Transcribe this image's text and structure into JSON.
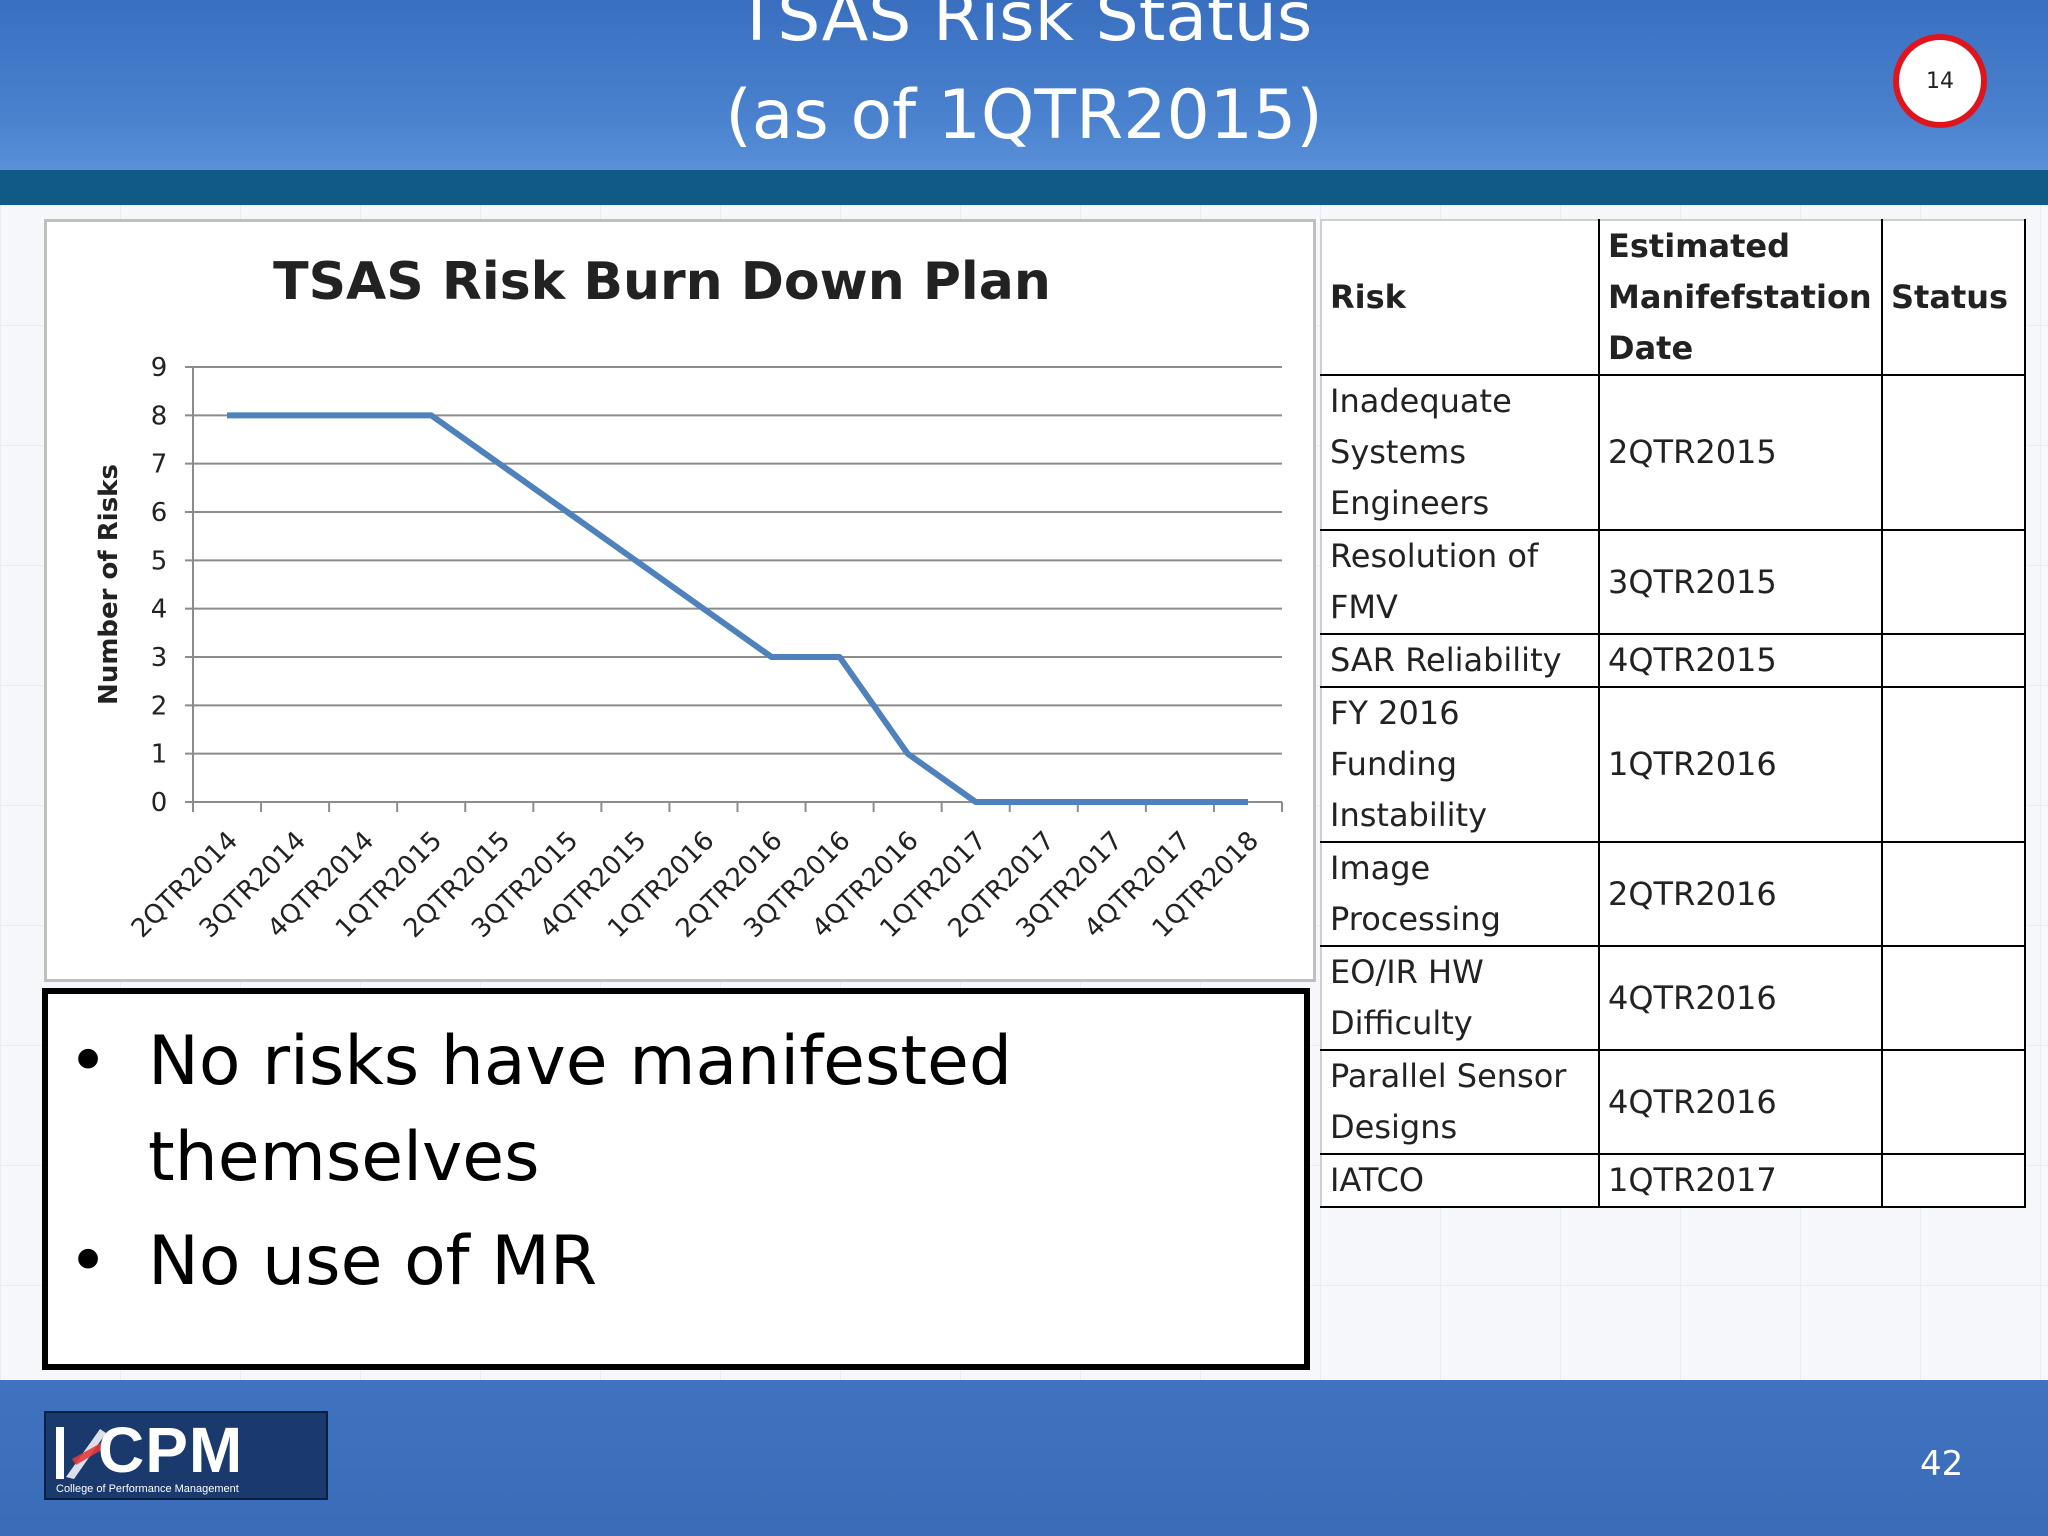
{
  "slide": {
    "title_line1": "TSAS Risk Status",
    "title_line2": "(as of 1QTR2015)",
    "page_badge": "14",
    "slide_number": "42"
  },
  "chart_data": {
    "type": "line",
    "title": "TSAS Risk Burn Down Plan",
    "xlabel": "",
    "ylabel": "Number of Risks",
    "ylim": [
      0,
      9
    ],
    "yticks": [
      0,
      1,
      2,
      3,
      4,
      5,
      6,
      7,
      8,
      9
    ],
    "grid": true,
    "categories": [
      "2QTR2014",
      "3QTR2014",
      "4QTR2014",
      "1QTR2015",
      "2QTR2015",
      "3QTR2015",
      "4QTR2015",
      "1QTR2016",
      "2QTR2016",
      "3QTR2016",
      "4QTR2016",
      "1QTR2017",
      "2QTR2017",
      "3QTR2017",
      "4QTR2017",
      "1QTR2018"
    ],
    "series": [
      {
        "values": [
          8,
          8,
          8,
          8,
          7,
          6,
          5,
          4,
          3,
          3,
          1,
          0,
          0,
          0,
          0,
          0
        ],
        "color": "#4f81bd"
      }
    ]
  },
  "bullets": [
    "No risks have manifested themselves",
    "No use of MR"
  ],
  "table": {
    "headers": [
      "Risk",
      "Estimated Manifefstation Date",
      "Status"
    ],
    "rows": [
      [
        "Inadequate Systems Engineers",
        "2QTR2015",
        ""
      ],
      [
        "Resolution of FMV",
        "3QTR2015",
        ""
      ],
      [
        "SAR Reliability",
        "4QTR2015",
        ""
      ],
      [
        "FY 2016 Funding Instability",
        "1QTR2016",
        ""
      ],
      [
        "Image Processing",
        "2QTR2016",
        ""
      ],
      [
        "EO/IR HW Difficulty",
        "4QTR2016",
        ""
      ],
      [
        "Parallel Sensor Designs",
        "4QTR2016",
        ""
      ],
      [
        "IATCO",
        "1QTR2017",
        ""
      ]
    ]
  },
  "logo": {
    "text": "CPM",
    "subtitle": "College of Performance Management"
  },
  "colors": {
    "header_blue": "#4a82cf",
    "band_dark": "#0f5a86",
    "badge_ring": "#e0141c",
    "line": "#4f81bd"
  }
}
